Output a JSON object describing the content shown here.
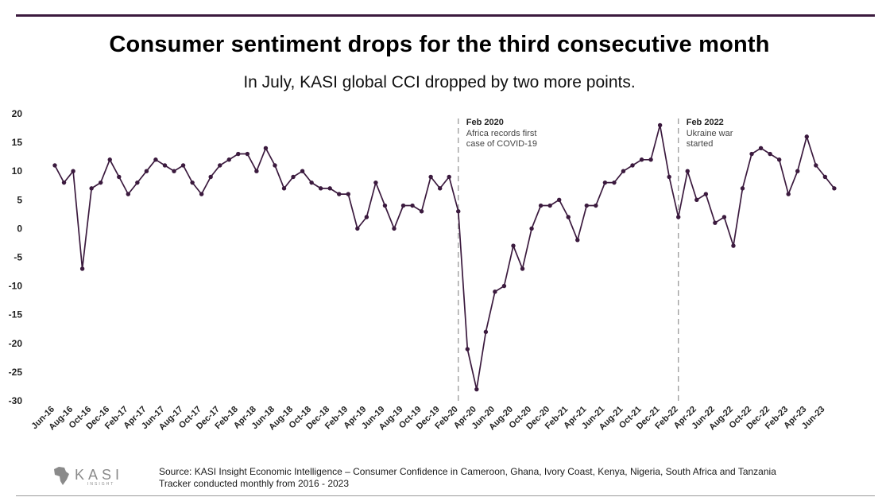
{
  "header": {
    "title": "Consumer sentiment drops for the third consecutive month",
    "subtitle": "In July, KASI global CCI dropped by two more points."
  },
  "chart_data": {
    "type": "line",
    "title": "Consumer sentiment drops for the third consecutive month",
    "subtitle": "In July, KASI global CCI dropped by two more points.",
    "xlabel": "",
    "ylabel": "",
    "ylim": [
      -30,
      20
    ],
    "yticks": [
      20,
      15,
      10,
      5,
      0,
      -5,
      -10,
      -15,
      -20,
      -25,
      -30
    ],
    "grid": false,
    "color": "#3b1a3e",
    "x_tick_labels": [
      "Jun-16",
      "Aug-16",
      "Oct-16",
      "Dec-16",
      "Feb-17",
      "Apr-17",
      "Jun-17",
      "Aug-17",
      "Oct-17",
      "Dec-17",
      "Feb-18",
      "Apr-18",
      "Jun-18",
      "Aug-18",
      "Oct-18",
      "Dec-18",
      "Feb-19",
      "Apr-19",
      "Jun-19",
      "Aug-19",
      "Oct-19",
      "Dec-19",
      "Feb-20",
      "Apr-20",
      "Jun-20",
      "Aug-20",
      "Oct-20",
      "Dec-20",
      "Feb-21",
      "Apr-21",
      "Jun-21",
      "Aug-21",
      "Oct-21",
      "Dec-21",
      "Feb-22",
      "Apr-22",
      "Jun-22",
      "Aug-22",
      "Oct-22",
      "Dec-22",
      "Feb-23",
      "Apr-23",
      "Jun-23"
    ],
    "series": [
      {
        "name": "KASI global CCI",
        "values": [
          11,
          8,
          10,
          -7,
          7,
          8,
          12,
          9,
          6,
          8,
          10,
          12,
          11,
          10,
          11,
          8,
          6,
          9,
          11,
          12,
          13,
          13,
          10,
          14,
          11,
          7,
          9,
          10,
          8,
          7,
          7,
          6,
          6,
          0,
          2,
          8,
          4,
          0,
          4,
          4,
          3,
          9,
          7,
          9,
          3,
          -21,
          -28,
          -18,
          -11,
          -10,
          -3,
          -7,
          0,
          4,
          4,
          5,
          2,
          -2,
          4,
          4,
          8,
          8,
          10,
          11,
          12,
          12,
          18,
          9,
          2,
          10,
          5,
          6,
          1,
          2,
          -3,
          7,
          13,
          14,
          13,
          12,
          6,
          10,
          16,
          11,
          9,
          7
        ]
      }
    ],
    "annotations": [
      {
        "x_label": "Feb-20",
        "index": 44,
        "title": "Feb 2020",
        "lines": [
          "Africa records first",
          "case of COVID-19"
        ]
      },
      {
        "x_label": "Feb-22",
        "index": 68,
        "title": "Feb 2022",
        "lines": [
          "Ukraine war",
          "started"
        ]
      }
    ]
  },
  "footer": {
    "logo_text": "KASI",
    "logo_sub": "INSIGHT",
    "source_line1": "Source: KASI Insight Economic Intelligence – Consumer Confidence in Cameroon, Ghana, Ivory Coast, Kenya, Nigeria, South Africa and Tanzania",
    "source_line2": "Tracker conducted monthly from 2016 - 2023"
  }
}
